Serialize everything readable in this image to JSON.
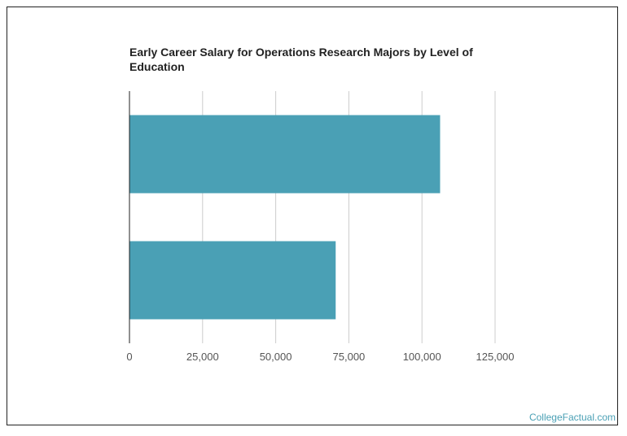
{
  "chart_data": {
    "type": "bar",
    "orientation": "horizontal",
    "title": "Early Career Salary for Operations Research Majors by Level of Education",
    "categories": [
      "",
      ""
    ],
    "values": [
      106200,
      70500
    ],
    "xlim": [
      0,
      125000
    ],
    "xticks": [
      0,
      25000,
      50000,
      75000,
      100000,
      125000
    ],
    "xtick_labels": [
      "0",
      "25,000",
      "50,000",
      "75,000",
      "100,000",
      "125,000"
    ],
    "xlabel": "",
    "ylabel": "",
    "grid": true,
    "bar_color": "#4aa0b5",
    "grid_color": "#cccccc"
  },
  "watermark": "CollegeFactual.com"
}
